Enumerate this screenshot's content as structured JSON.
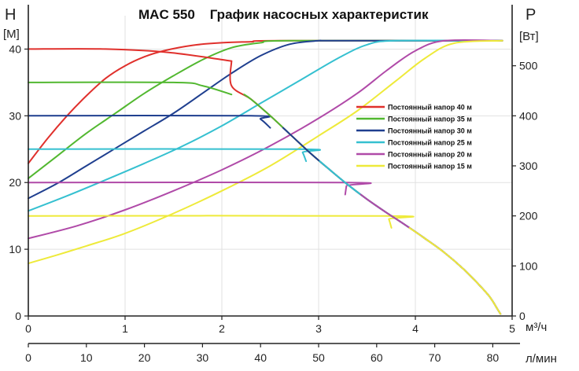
{
  "chart_data": {
    "type": "line",
    "title": "MAC 550    График насосных характеристик",
    "left_axis": {
      "letter": "H",
      "unit": "[M]",
      "range": [
        0,
        45
      ],
      "ticks": [
        0,
        10,
        20,
        30,
        40
      ]
    },
    "right_axis": {
      "letter": "P",
      "unit": "[Вт]",
      "range": [
        0,
        600
      ],
      "ticks": [
        0,
        100,
        200,
        300,
        400,
        500
      ]
    },
    "x_axis": {
      "unit": "м³/ч",
      "range": [
        0,
        5
      ],
      "ticks": [
        0,
        1,
        2,
        3,
        4,
        5
      ]
    },
    "x_axis_secondary": {
      "unit": "л/мин",
      "range": [
        0,
        83.3333
      ],
      "ticks": [
        0,
        10,
        20,
        30,
        40,
        50,
        60,
        70,
        80
      ]
    },
    "grid": true,
    "legend_position": "right-center",
    "pump_curve": {
      "x": [
        2.1,
        2.3,
        2.5,
        2.7,
        2.9,
        3.1,
        3.3,
        3.5,
        3.7,
        3.9,
        4.1,
        4.3,
        4.5,
        4.65,
        4.75,
        4.8,
        4.85,
        4.88
      ],
      "h": [
        34.5,
        32.5,
        30.0,
        27.3,
        24.6,
        22.1,
        19.7,
        17.5,
        15.5,
        13.6,
        11.6,
        9.5,
        7.0,
        4.8,
        3.2,
        2.2,
        1.0,
        0.3
      ]
    },
    "series": [
      {
        "name": "Постоянный напор 40 м",
        "color": "#e0302c",
        "head": 40,
        "head_end_x": 0.8,
        "power": {
          "x": [
            0,
            0.2,
            0.4,
            0.6,
            0.8,
            1.0,
            1.2,
            1.4,
            1.7,
            2.0,
            2.3,
            2.6,
            4.9
          ],
          "y": [
            305,
            355,
            400,
            440,
            475,
            500,
            518,
            530,
            541,
            546,
            548,
            550,
            550
          ]
        }
      },
      {
        "name": "Постоянный напор 35 м",
        "color": "#52b830",
        "head": 35,
        "head_end_x": 1.5,
        "power": {
          "x": [
            0,
            0.3,
            0.6,
            0.9,
            1.2,
            1.5,
            1.8,
            2.1,
            2.4,
            2.7,
            4.9
          ],
          "y": [
            275,
            320,
            365,
            405,
            445,
            480,
            512,
            536,
            546,
            550,
            550
          ]
        }
      },
      {
        "name": "Постоянный напор 30 м",
        "color": "#1f3f8f",
        "head": 30,
        "head_end_x": 2.3,
        "power": {
          "x": [
            0,
            0.3,
            0.6,
            0.9,
            1.2,
            1.5,
            1.8,
            2.1,
            2.4,
            2.7,
            3.0,
            3.2,
            4.9
          ],
          "y": [
            235,
            265,
            300,
            335,
            370,
            405,
            445,
            485,
            520,
            543,
            550,
            550,
            550
          ]
        }
      },
      {
        "name": "Постоянный напор 25 м",
        "color": "#35c0d0",
        "head": 25,
        "head_end_x": 2.8,
        "power": {
          "x": [
            0,
            0.4,
            0.8,
            1.2,
            1.6,
            2.0,
            2.4,
            2.8,
            3.2,
            3.5,
            3.8,
            4.9
          ],
          "y": [
            210,
            240,
            272,
            305,
            340,
            380,
            425,
            470,
            515,
            542,
            550,
            550
          ]
        }
      },
      {
        "name": "Постоянный напор 20 м",
        "color": "#b04aa8",
        "head": 20,
        "head_end_x": 3.3,
        "power": {
          "x": [
            0,
            0.5,
            1.0,
            1.5,
            2.0,
            2.5,
            3.0,
            3.4,
            3.7,
            4.0,
            4.3,
            4.9
          ],
          "y": [
            155,
            180,
            212,
            250,
            292,
            340,
            395,
            445,
            490,
            530,
            550,
            550
          ]
        }
      },
      {
        "name": "Постоянный напор 15 м",
        "color": "#eeea3a",
        "head": 15,
        "head_end_x": 3.7,
        "power": {
          "x": [
            0,
            0.3,
            0.6,
            1.0,
            1.5,
            2.0,
            2.5,
            3.0,
            3.4,
            3.8,
            4.1,
            4.4,
            4.9
          ],
          "y": [
            105,
            122,
            140,
            165,
            205,
            250,
            300,
            360,
            410,
            470,
            515,
            545,
            550
          ]
        }
      }
    ]
  }
}
